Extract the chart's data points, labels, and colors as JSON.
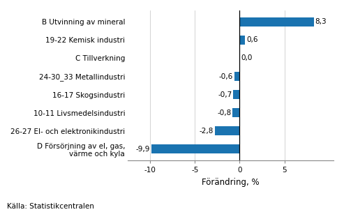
{
  "categories": [
    "D Försörjning av el, gas,\nvärme och kyla",
    "26-27 El- och elektronikindustri",
    "10-11 Livsmedelsindustri",
    "16-17 Skogsindustri",
    "24-30_33 Metallindustri",
    "C Tillverkning",
    "19-22 Kemisk industri",
    "B Utvinning av mineral"
  ],
  "values": [
    -9.9,
    -2.8,
    -0.8,
    -0.7,
    -0.6,
    0.0,
    0.6,
    8.3
  ],
  "value_labels": [
    "-9,9",
    "-2,8",
    "-0,8",
    "-0,7",
    "-0,6",
    "0,0",
    "0,6",
    "8,3"
  ],
  "bar_color": "#1a73b0",
  "xlabel": "Förändring, %",
  "source": "Källa: Statistikcentralen",
  "xlim": [
    -12.5,
    10.5
  ],
  "xticks": [
    -10,
    -5,
    0,
    5
  ],
  "xtick_labels": [
    "-10",
    "-5",
    "0",
    "5"
  ],
  "label_fontsize": 7.5,
  "source_fontsize": 7.5,
  "xlabel_fontsize": 8.5,
  "value_label_fontsize": 7.5
}
